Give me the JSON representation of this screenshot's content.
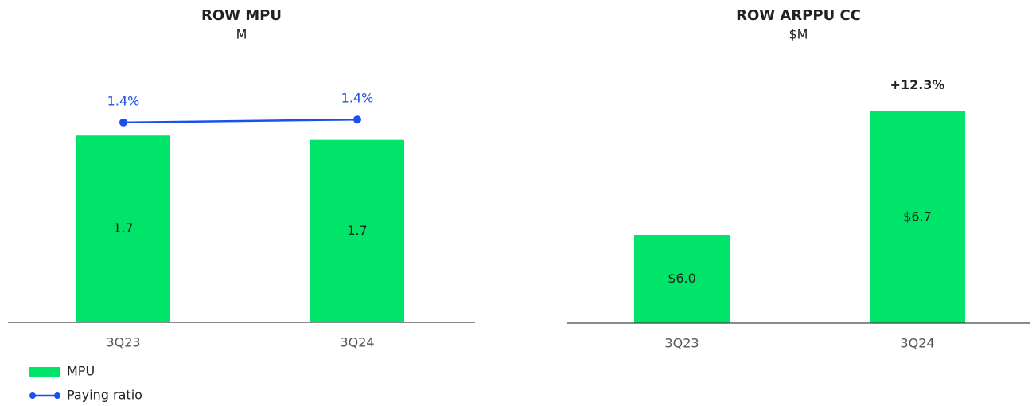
{
  "chart_data": [
    {
      "type": "bar",
      "title": "ROW MPU",
      "subtitle": "M",
      "categories": [
        "3Q23",
        "3Q24"
      ],
      "series": [
        {
          "name": "MPU",
          "color": "#00e46a",
          "values": [
            1.72,
            1.68
          ],
          "value_labels": [
            "1.7",
            "1.7"
          ]
        },
        {
          "name": "Paying ratio",
          "color": "#1a4ff0",
          "type": "line",
          "axis": "y2",
          "values": [
            1.38,
            1.4
          ],
          "value_labels": [
            "1.4%",
            "1.4%"
          ]
        }
      ],
      "ylim": [
        0,
        2
      ],
      "y2lim": [
        0,
        1.5
      ],
      "legend": "bottom-left"
    },
    {
      "type": "bar",
      "title": "ROW ARPPU CC",
      "subtitle": "$M",
      "categories": [
        "3Q23",
        "3Q24"
      ],
      "series": [
        {
          "name": "ARPPU",
          "color": "#00e46a",
          "values": [
            6.0,
            6.7
          ],
          "value_labels": [
            "$6.0",
            "$6.7"
          ]
        }
      ],
      "ylim": [
        5.5,
        7.0
      ],
      "annotations": [
        "+12.3%"
      ]
    }
  ]
}
